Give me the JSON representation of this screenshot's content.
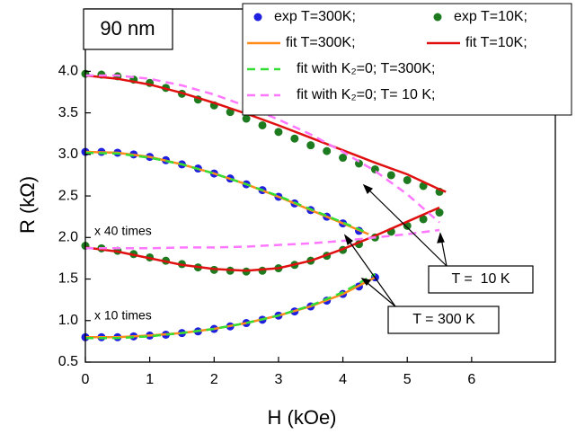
{
  "chart_data": {
    "type": "line",
    "xlabel": "H (kOe)",
    "ylabel": "R (kΩ)",
    "xlim": [
      0,
      7.3
    ],
    "ylim": [
      0.5,
      4.75
    ],
    "xticks": [
      0,
      1,
      2,
      3,
      4,
      5,
      6
    ],
    "yticks": [
      0.5,
      {
        "value": 1.0,
        "label": "1.0"
      },
      1.5,
      {
        "value": 2.0,
        "label": "2.0"
      },
      2.5,
      {
        "value": 3.0,
        "label": "3.0"
      },
      3.5,
      {
        "value": 4.0,
        "label": "4.0"
      }
    ],
    "legend": "upper right",
    "annotations": [
      "90 nm",
      "x 40 times",
      "x 10 times",
      "T =  10 K",
      "T = 300 K"
    ],
    "series": [
      {
        "name": "exp T=300K;",
        "color": "#1f1fe0",
        "style": "markers",
        "x": [
          0,
          0.25,
          0.5,
          0.75,
          1,
          1.25,
          1.5,
          1.75,
          2,
          2.25,
          2.5,
          2.75,
          3,
          3.25,
          3.5,
          3.75,
          4,
          4.25,
          null,
          0,
          0.25,
          0.5,
          0.75,
          1,
          1.25,
          1.5,
          1.75,
          2,
          2.25,
          2.5,
          2.75,
          3,
          3.25,
          3.5,
          3.75,
          4,
          4.25,
          4.5
        ],
        "values": [
          3.03,
          3.03,
          3.02,
          3.0,
          2.97,
          2.93,
          2.88,
          2.83,
          2.77,
          2.71,
          2.64,
          2.57,
          2.49,
          2.41,
          2.33,
          2.25,
          2.17,
          2.08,
          null,
          0.8,
          0.8,
          0.8,
          0.81,
          0.82,
          0.83,
          0.85,
          0.87,
          0.9,
          0.93,
          0.97,
          1.01,
          1.06,
          1.11,
          1.17,
          1.24,
          1.32,
          1.41,
          1.52
        ]
      },
      {
        "name": "exp T=10K;",
        "color": "#1e7a1e",
        "style": "markers",
        "x": [
          0,
          0.25,
          0.5,
          0.75,
          1,
          1.25,
          1.5,
          1.75,
          2,
          2.25,
          2.5,
          2.75,
          3,
          3.25,
          3.5,
          3.75,
          4,
          4.25,
          4.5,
          4.75,
          5,
          5.25,
          5.5,
          null,
          0,
          0.25,
          0.5,
          0.75,
          1,
          1.25,
          1.5,
          1.75,
          2,
          2.25,
          2.5,
          2.75,
          3,
          3.25,
          3.5,
          3.75,
          4,
          4.25,
          4.5,
          4.75,
          5,
          5.25,
          5.5
        ],
        "values": [
          3.97,
          3.96,
          3.94,
          3.9,
          3.86,
          3.8,
          3.73,
          3.66,
          3.59,
          3.51,
          3.43,
          3.35,
          3.27,
          3.19,
          3.11,
          3.04,
          2.96,
          2.89,
          2.82,
          2.75,
          2.69,
          2.62,
          2.55,
          null,
          1.9,
          1.87,
          1.84,
          1.8,
          1.76,
          1.72,
          1.68,
          1.64,
          1.61,
          1.6,
          1.59,
          1.6,
          1.63,
          1.67,
          1.72,
          1.78,
          1.85,
          1.92,
          2.0,
          2.07,
          2.14,
          2.22,
          2.3
        ]
      },
      {
        "name": "fit  T=300K;",
        "color": "#ff8c1a",
        "style": "solid",
        "x": [
          0,
          0.5,
          1,
          1.5,
          2,
          2.5,
          3,
          3.5,
          4,
          4.4,
          null,
          0,
          0.5,
          1,
          1.5,
          2,
          2.5,
          3,
          3.5,
          4,
          4.5
        ],
        "values": [
          3.03,
          3.02,
          2.97,
          2.88,
          2.77,
          2.64,
          2.49,
          2.33,
          2.17,
          2.04,
          null,
          0.8,
          0.8,
          0.82,
          0.85,
          0.9,
          0.97,
          1.06,
          1.17,
          1.32,
          1.52
        ]
      },
      {
        "name": "fit   T=10K;",
        "color": "#e01010",
        "style": "solid",
        "x": [
          0,
          0.5,
          1,
          1.5,
          2,
          2.5,
          3,
          3.5,
          4,
          4.5,
          5,
          5.5,
          5.6,
          null,
          0,
          0.5,
          1,
          1.5,
          2,
          2.5,
          3,
          3.5,
          4,
          4.5,
          5,
          5.5
        ],
        "values": [
          3.95,
          3.91,
          3.84,
          3.74,
          3.62,
          3.49,
          3.35,
          3.2,
          3.05,
          2.9,
          2.76,
          2.58,
          2.55,
          null,
          1.88,
          1.83,
          1.75,
          1.67,
          1.62,
          1.6,
          1.63,
          1.72,
          1.86,
          2.02,
          2.19,
          2.36
        ]
      },
      {
        "name": "fit with K₂=0; T=300K;",
        "color": "#33dd33",
        "style": "dashed",
        "x": [
          0,
          0.5,
          1,
          1.5,
          2,
          2.5,
          3,
          3.5,
          4,
          4.4,
          null,
          0,
          0.5,
          1,
          1.5,
          2,
          2.5,
          3,
          3.5,
          4,
          4.5
        ],
        "values": [
          3.02,
          3.01,
          2.96,
          2.88,
          2.77,
          2.64,
          2.5,
          2.34,
          2.18,
          2.05,
          null,
          0.79,
          0.79,
          0.81,
          0.85,
          0.9,
          0.97,
          1.06,
          1.18,
          1.34,
          1.56
        ]
      },
      {
        "name": "fit with K₂=0; T= 10 K;",
        "color": "#ff77ff",
        "style": "dashed",
        "x": [
          0,
          0.5,
          1,
          1.5,
          2,
          2.5,
          3,
          3.5,
          4,
          4.5,
          5,
          5.5,
          null,
          0,
          0.5,
          1,
          1.5,
          2,
          2.5,
          3,
          3.5,
          4,
          4.5,
          5,
          5.5
        ],
        "values": [
          3.95,
          3.95,
          3.91,
          3.83,
          3.72,
          3.58,
          3.42,
          3.24,
          3.03,
          2.8,
          2.52,
          2.18,
          null,
          1.87,
          1.87,
          1.87,
          1.88,
          1.88,
          1.89,
          1.91,
          1.93,
          1.96,
          2.0,
          2.04,
          2.09
        ]
      }
    ]
  }
}
